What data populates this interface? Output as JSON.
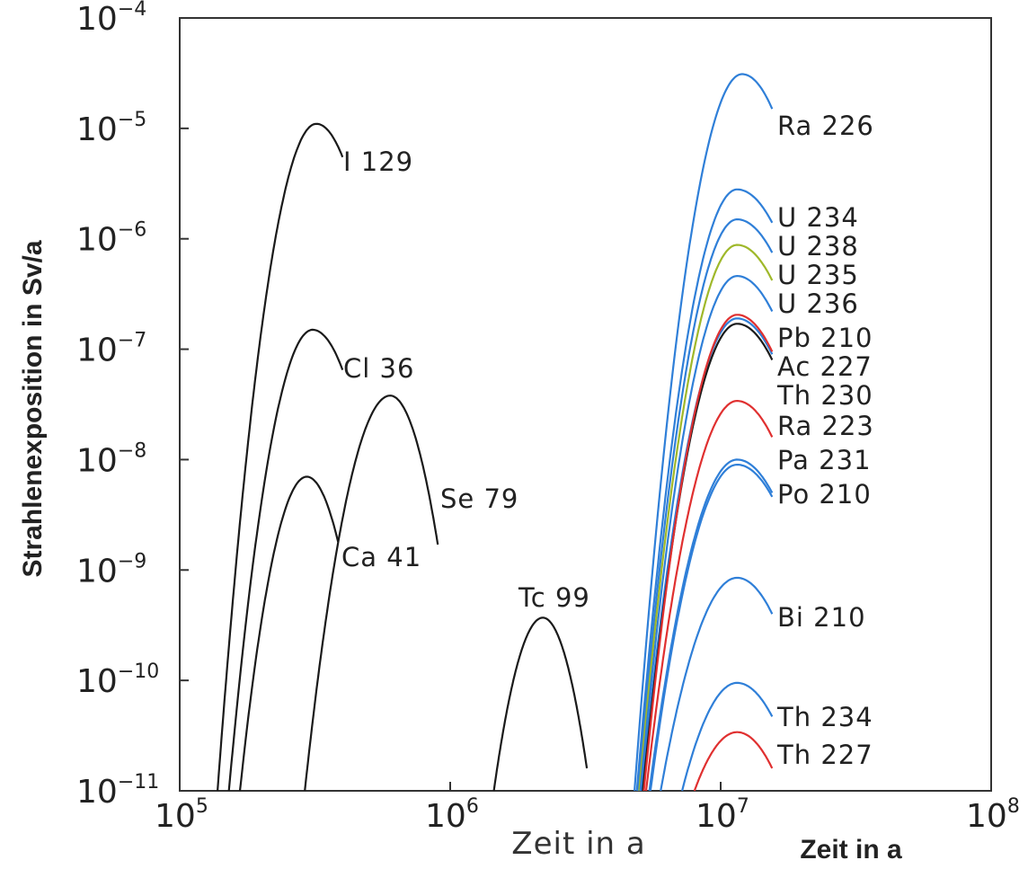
{
  "chart_data": {
    "type": "line",
    "ylabel": "Strahlenexposition in Sv/a",
    "xlabel": "Zeit in a",
    "xlabel_secondary": "Zeit in a",
    "x_scale": "log",
    "y_scale": "log",
    "xlim": [
      100000,
      100000000
    ],
    "ylim": [
      1e-11,
      0.0001
    ],
    "grid": false,
    "x_ticks": [
      {
        "value": 100000,
        "base": "10",
        "exp": "5"
      },
      {
        "value": 1000000,
        "base": "10",
        "exp": "6"
      },
      {
        "value": 10000000,
        "base": "10",
        "exp": "7"
      },
      {
        "value": 100000000,
        "base": "10",
        "exp": "8"
      }
    ],
    "y_ticks": [
      {
        "value": 0.0001,
        "base": "10",
        "exp": "−4"
      },
      {
        "value": 1e-05,
        "base": "10",
        "exp": "−5"
      },
      {
        "value": 1e-06,
        "base": "10",
        "exp": "−6"
      },
      {
        "value": 1e-07,
        "base": "10",
        "exp": "−7"
      },
      {
        "value": 1e-08,
        "base": "10",
        "exp": "−8"
      },
      {
        "value": 1e-09,
        "base": "10",
        "exp": "−9"
      },
      {
        "value": 1e-10,
        "base": "10",
        "exp": "−10"
      },
      {
        "value": 1e-11,
        "base": "10",
        "exp": "−11"
      }
    ],
    "series": [
      {
        "name": "I 129",
        "color": "#1a1a1a",
        "peak_x": 320000,
        "peak_y": 1.1e-05,
        "x_start": 138000,
        "x_end": 400000,
        "y_end": 5.5e-06
      },
      {
        "name": "Cl 36",
        "color": "#1a1a1a",
        "peak_x": 310000,
        "peak_y": 1.5e-07,
        "x_start": 152000,
        "x_end": 400000,
        "y_end": 6.5e-08
      },
      {
        "name": "Ca 41",
        "color": "#1a1a1a",
        "peak_x": 295000,
        "peak_y": 7e-09,
        "x_start": 167000,
        "x_end": 385000,
        "y_end": 1.8e-09
      },
      {
        "name": "Se 79",
        "color": "#1a1a1a",
        "peak_x": 600000,
        "peak_y": 3.8e-08,
        "x_start": 290000,
        "x_end": 900000,
        "y_end": 1.7e-09
      },
      {
        "name": "Tc 99",
        "color": "#1a1a1a",
        "peak_x": 2200000,
        "peak_y": 3.7e-10,
        "x_start": 1450000,
        "x_end": 3200000,
        "y_end": 1.6e-11
      },
      {
        "name": "Ra 226",
        "color": "#2f7fd8",
        "peak_x": 12000000,
        "peak_y": 3.1e-05,
        "x_start": 4800000,
        "x_end": 15500000,
        "y_end": 1.5e-05
      },
      {
        "name": "U 234",
        "color": "#2f7fd8",
        "peak_x": 11500000,
        "peak_y": 2.8e-06,
        "x_start": 4900000,
        "x_end": 15500000,
        "y_end": 1.4e-06
      },
      {
        "name": "U 238",
        "color": "#2f7fd8",
        "peak_x": 11500000,
        "peak_y": 1.5e-06,
        "x_start": 4950000,
        "x_end": 15500000,
        "y_end": 7.5e-07
      },
      {
        "name": "U 235",
        "color": "#9fb82a",
        "peak_x": 11500000,
        "peak_y": 8.8e-07,
        "x_start": 5000000,
        "x_end": 15500000,
        "y_end": 4.2e-07
      },
      {
        "name": "U 236",
        "color": "#2f7fd8",
        "peak_x": 11500000,
        "peak_y": 4.6e-07,
        "x_start": 5050000,
        "x_end": 15500000,
        "y_end": 2.2e-07
      },
      {
        "name": "Pb 210",
        "color": "#2f7fd8",
        "peak_x": 11500000,
        "peak_y": 1.9e-07,
        "x_start": 5100000,
        "x_end": 15500000,
        "y_end": 9e-08
      },
      {
        "name": "Ac 227",
        "color": "#1a1a1a",
        "peak_x": 11500000,
        "peak_y": 1.7e-07,
        "x_start": 5150000,
        "x_end": 15500000,
        "y_end": 8e-08
      },
      {
        "name": "Th 230",
        "color": "#e03030",
        "peak_x": 11500000,
        "peak_y": 2.05e-07,
        "x_start": 5200000,
        "x_end": 15500000,
        "y_end": 9.5e-08
      },
      {
        "name": "Ra 223",
        "color": "#e03030",
        "peak_x": 11500000,
        "peak_y": 3.4e-08,
        "x_start": 5300000,
        "x_end": 15500000,
        "y_end": 1.6e-08
      },
      {
        "name": "Pa 231",
        "color": "#2f7fd8",
        "peak_x": 11500000,
        "peak_y": 1e-08,
        "x_start": 5450000,
        "x_end": 15500000,
        "y_end": 5e-09
      },
      {
        "name": "Po 210",
        "color": "#2f7fd8",
        "peak_x": 11500000,
        "peak_y": 9e-09,
        "x_start": 5500000,
        "x_end": 15500000,
        "y_end": 4.6e-09
      },
      {
        "name": "Bi 210",
        "color": "#2f7fd8",
        "peak_x": 11500000,
        "peak_y": 8.5e-10,
        "x_start": 6000000,
        "x_end": 15500000,
        "y_end": 4e-10
      },
      {
        "name": "Th 234",
        "color": "#2f7fd8",
        "peak_x": 11500000,
        "peak_y": 9.5e-11,
        "x_start": 7200000,
        "x_end": 15500000,
        "y_end": 4.7e-11
      },
      {
        "name": "Th 227",
        "color": "#e03030",
        "peak_x": 11500000,
        "peak_y": 3.4e-11,
        "x_start": 8000000,
        "x_end": 15500000,
        "y_end": 1.6e-11
      }
    ]
  }
}
